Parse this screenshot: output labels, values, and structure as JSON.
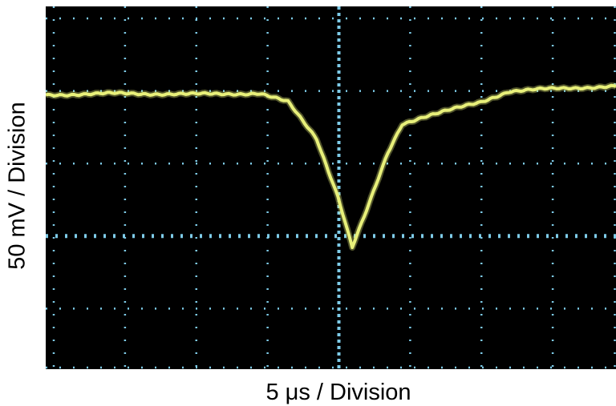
{
  "chart_data": {
    "type": "line",
    "xlabel": "5 μs / Division",
    "ylabel": "50 mV / Division",
    "x_divisions": 8,
    "y_divisions": 5,
    "grid": true,
    "series": [
      {
        "x": [
          0,
          1,
          2,
          3,
          3.4,
          3.8,
          4.1,
          4.3,
          4.5,
          4.8,
          5.0,
          5.3,
          5.7,
          6.1,
          6.5,
          7.0,
          7.5,
          8.0
        ],
        "y": [
          0.0,
          0.02,
          0.01,
          0.02,
          -0.1,
          -0.6,
          -1.4,
          -2.1,
          -1.6,
          -0.8,
          -0.4,
          -0.3,
          -0.2,
          -0.1,
          0.05,
          0.08,
          0.1,
          0.12
        ]
      }
    ],
    "colors": {
      "trace": "#e8f07a",
      "grid": "#7ecbe8",
      "screen": "#000000"
    }
  }
}
